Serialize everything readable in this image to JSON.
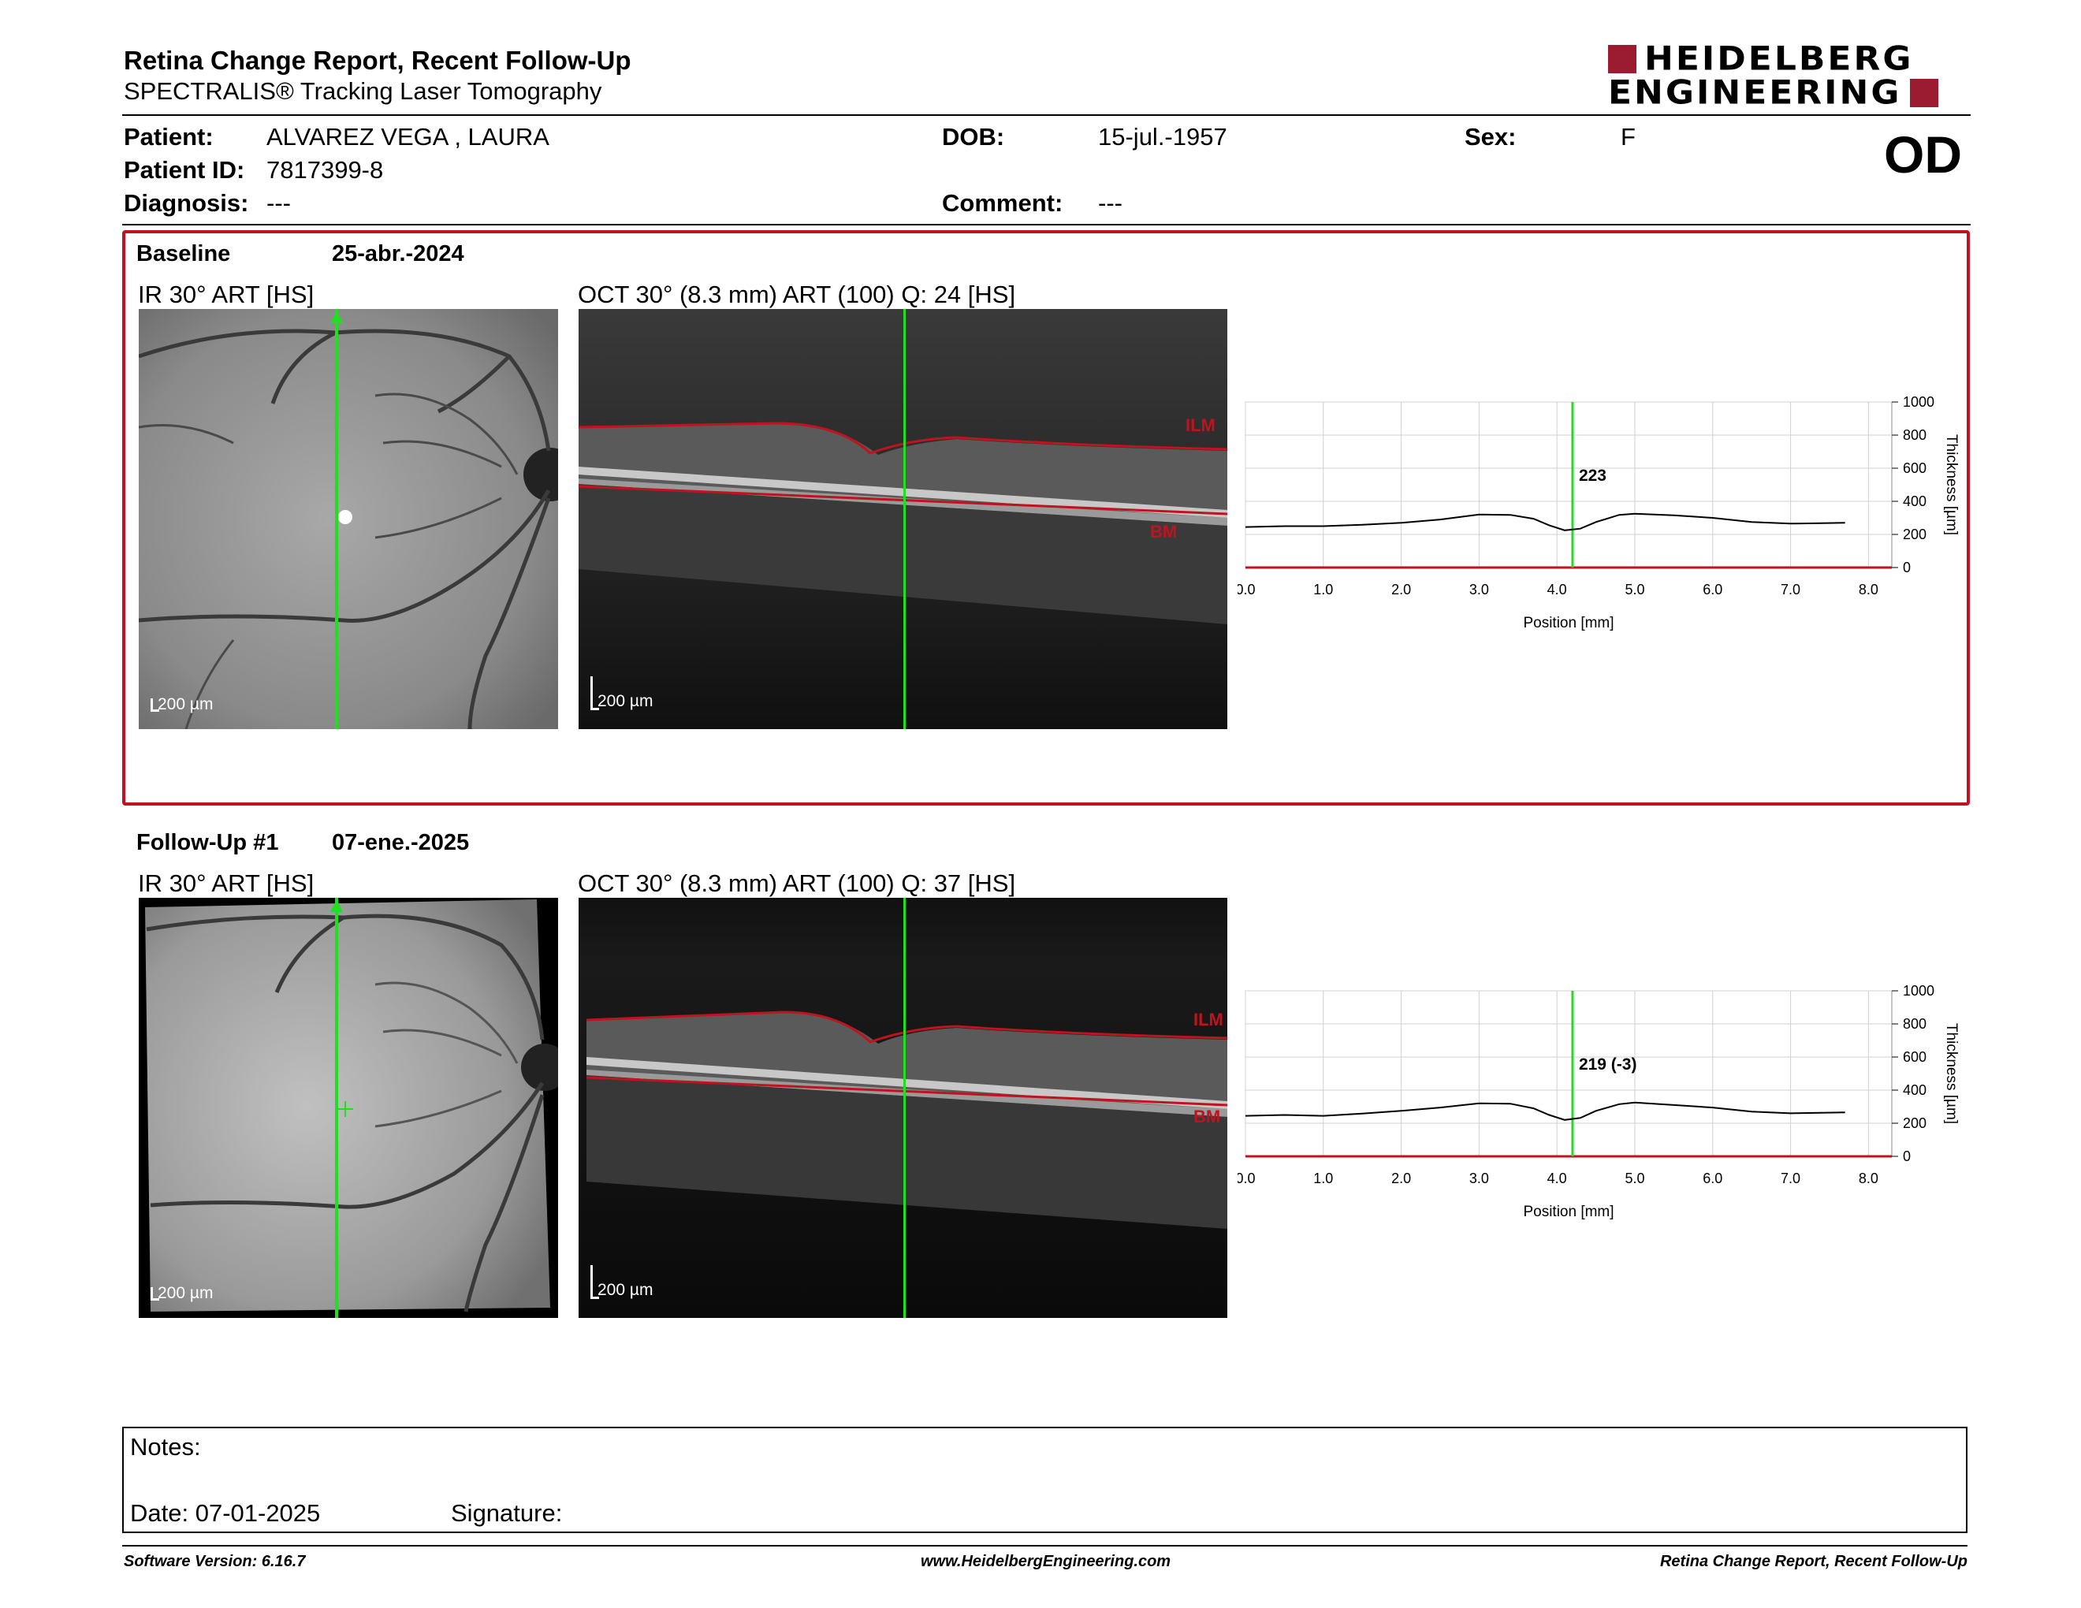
{
  "header": {
    "title": "Retina Change Report, Recent Follow-Up",
    "subtitle": "SPECTRALIS® Tracking Laser Tomography",
    "logo_line1": "HEIDELBERG",
    "logo_line2": "ENGINEERING",
    "eye": "OD"
  },
  "patient": {
    "patient_label": "Patient:",
    "patient_value": "ALVAREZ VEGA , LAURA",
    "id_label": "Patient ID:",
    "id_value": "7817399-8",
    "diagnosis_label": "Diagnosis:",
    "diagnosis_value": "---",
    "dob_label": "DOB:",
    "dob_value": "15-jul.-1957",
    "comment_label": "Comment:",
    "comment_value": "---",
    "sex_label": "Sex:",
    "sex_value": "F"
  },
  "baseline": {
    "label": "Baseline",
    "date": "25-abr.-2024",
    "ir_title": "IR 30° ART [HS]",
    "oct_title": "OCT 30° (8.3 mm) ART (100) Q: 24 [HS]",
    "scale_ir": "200 µm",
    "scale_oct": "200 µm",
    "ilm": "ILM",
    "bm": "BM"
  },
  "followup": {
    "label": "Follow-Up #1",
    "date": "07-ene.-2025",
    "ir_title": "IR 30° ART [HS]",
    "oct_title": "OCT 30° (8.3 mm) ART (100) Q: 37 [HS]",
    "scale_ir": "200 µm",
    "scale_oct": "200 µm",
    "ilm": "ILM",
    "bm": "BM"
  },
  "chart_data": [
    {
      "type": "line",
      "xlabel": "Position [mm]",
      "ylabel": "Thickness [µm]",
      "xlim": [
        0,
        8.3
      ],
      "ylim": [
        0,
        1000
      ],
      "xticks": [
        "0.0",
        "1.0",
        "2.0",
        "3.0",
        "4.0",
        "5.0",
        "6.0",
        "7.0",
        "8.0"
      ],
      "yticks": [
        "0",
        "200",
        "400",
        "600",
        "800",
        "1000"
      ],
      "grid": true,
      "cursor_x": 4.2,
      "cursor_label": "223",
      "x": [
        0,
        0.5,
        1,
        1.5,
        2,
        2.5,
        3,
        3.4,
        3.7,
        3.9,
        4.1,
        4.3,
        4.5,
        4.8,
        5.0,
        5.5,
        6.0,
        6.5,
        7.0,
        7.7
      ],
      "y": [
        245,
        250,
        250,
        258,
        270,
        290,
        320,
        318,
        295,
        255,
        225,
        235,
        275,
        318,
        325,
        315,
        300,
        275,
        265,
        270
      ]
    },
    {
      "type": "line",
      "xlabel": "Position [mm]",
      "ylabel": "Thickness [µm]",
      "xlim": [
        0,
        8.3
      ],
      "ylim": [
        0,
        1000
      ],
      "xticks": [
        "0.0",
        "1.0",
        "2.0",
        "3.0",
        "4.0",
        "5.0",
        "6.0",
        "7.0",
        "8.0"
      ],
      "yticks": [
        "0",
        "200",
        "400",
        "600",
        "800",
        "1000"
      ],
      "grid": true,
      "cursor_x": 4.2,
      "cursor_label": "219 (-3)",
      "x": [
        0,
        0.5,
        1,
        1.5,
        2,
        2.5,
        3,
        3.4,
        3.7,
        3.9,
        4.1,
        4.3,
        4.5,
        4.8,
        5.0,
        5.5,
        6.0,
        6.5,
        7.0,
        7.7
      ],
      "y": [
        245,
        250,
        245,
        258,
        275,
        295,
        320,
        318,
        290,
        250,
        220,
        232,
        275,
        315,
        325,
        310,
        295,
        270,
        260,
        265
      ]
    }
  ],
  "notes": {
    "notes_label": "Notes:",
    "date_label": "Date: 07-01-2025",
    "signature_label": "Signature:"
  },
  "footer": {
    "left": "Software Version: 6.16.7",
    "center": "www.HeidelbergEngineering.com",
    "right": "Retina Change Report, Recent Follow-Up"
  },
  "colors": {
    "accent_red": "#c1121f",
    "logo_red": "#9b1b30",
    "cursor_green": "#22dd22"
  }
}
